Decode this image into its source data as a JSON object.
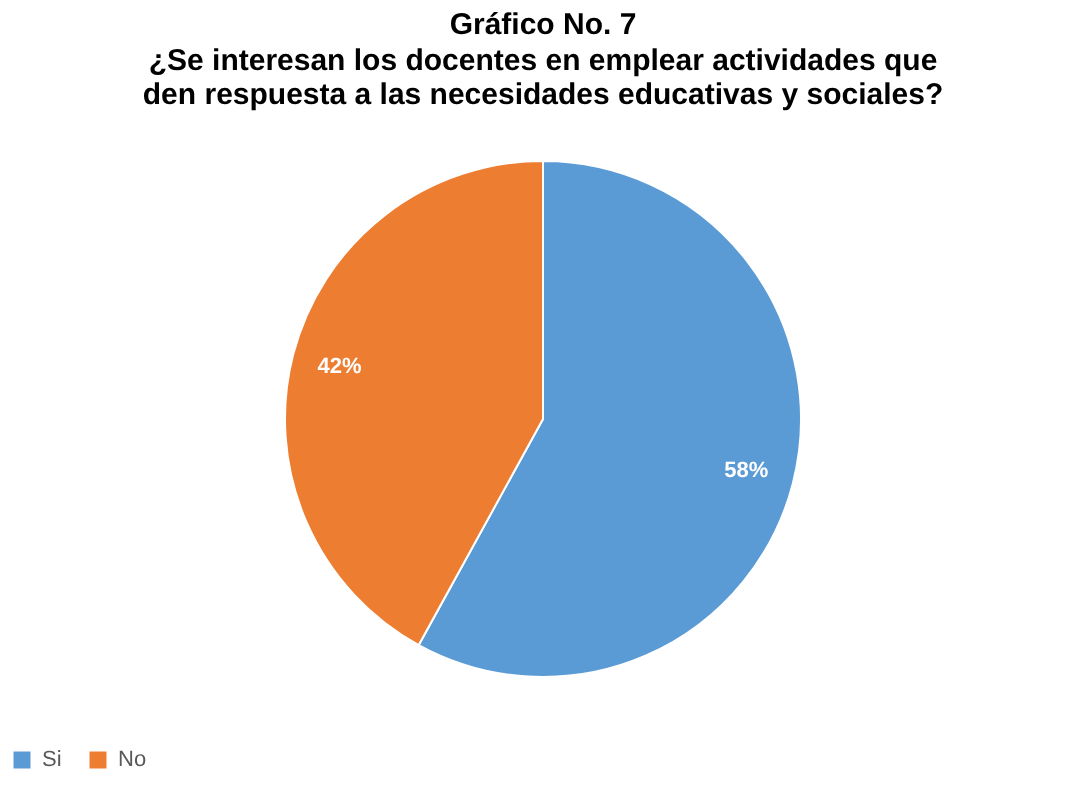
{
  "chart_data": {
    "type": "pie",
    "title": "Gráfico No. 7",
    "subtitle": "¿Se interesan los docentes en emplear actividades que den respuesta a las necesidades educativas y sociales?",
    "categories": [
      "Si",
      "No"
    ],
    "values": [
      58,
      42
    ],
    "colors": [
      "#5b9bd5",
      "#ed7d31"
    ],
    "value_labels": [
      "58%",
      "42%"
    ],
    "legend": "bottom"
  }
}
